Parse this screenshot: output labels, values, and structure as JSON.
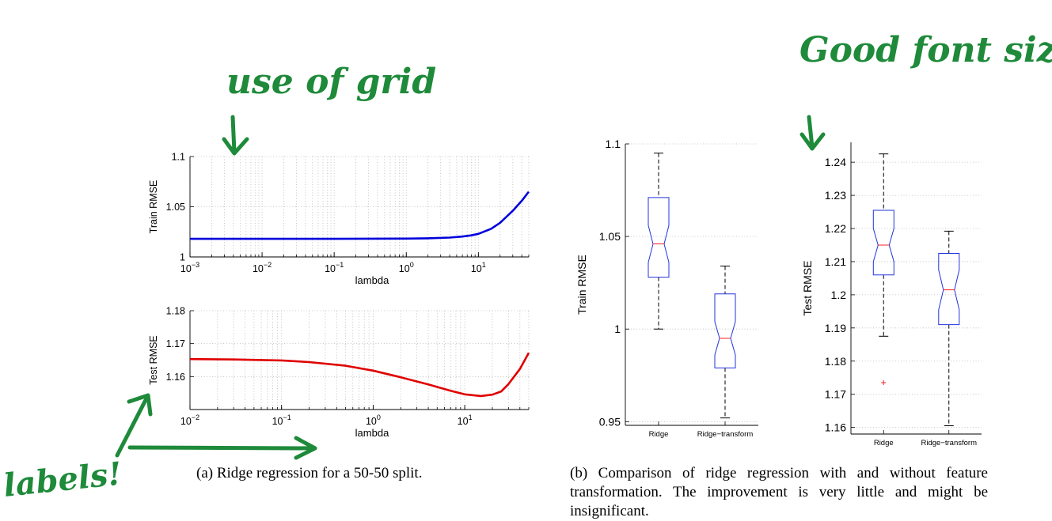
{
  "colors": {
    "annotation_green": "#1e8a3a",
    "series_blue": "#0000dd",
    "series_red": "#e00000",
    "box_blue": "#2233dd",
    "median_red": "#ff2020",
    "grid": "#b8b8b8"
  },
  "annotations": {
    "grid_note": "use of grid",
    "font_note": "Good font size.",
    "labels_note": "labels!"
  },
  "captions": {
    "a": "(a) Ridge regression for a 50-50 split.",
    "b": "(b) Comparison of ridge regression with and without feature transformation. The improvement is very little and might be insignificant."
  },
  "chart_data": [
    {
      "id": "a-train",
      "type": "line",
      "xscale": "log",
      "xlabel": "lambda",
      "ylabel": "Train RMSE",
      "xlim": [
        0.001,
        50
      ],
      "ylim": [
        1.0,
        1.1
      ],
      "xticks": [
        0.001,
        0.01,
        0.1,
        1,
        10
      ],
      "xtick_exponents": [
        "-3",
        "-2",
        "-1",
        "0",
        "1"
      ],
      "yticks": [
        1.0,
        1.05,
        1.1
      ],
      "ytick_labels": [
        "1",
        "1.05",
        "1.1"
      ],
      "grid": true,
      "series": [
        {
          "color": "#0000dd",
          "x": [
            0.001,
            0.01,
            0.1,
            1,
            2,
            4,
            6,
            8,
            10,
            15,
            20,
            30,
            40,
            50
          ],
          "y": [
            1.018,
            1.018,
            1.018,
            1.0183,
            1.0186,
            1.0193,
            1.0203,
            1.0215,
            1.023,
            1.028,
            1.034,
            1.046,
            1.056,
            1.065
          ]
        }
      ]
    },
    {
      "id": "a-test",
      "type": "line",
      "xscale": "log",
      "xlabel": "lambda",
      "ylabel": "Test RMSE",
      "xlim": [
        0.01,
        50
      ],
      "ylim": [
        1.15,
        1.18
      ],
      "xticks": [
        0.01,
        0.1,
        1,
        10
      ],
      "xtick_exponents": [
        "-2",
        "-1",
        "0",
        "1"
      ],
      "yticks": [
        1.16,
        1.17,
        1.18
      ],
      "ytick_labels": [
        "1.16",
        "1.17",
        "1.18"
      ],
      "grid": true,
      "series": [
        {
          "color": "#e00000",
          "x": [
            0.01,
            0.03,
            0.1,
            0.2,
            0.5,
            1,
            2,
            4,
            7,
            10,
            15,
            20,
            25,
            30,
            40,
            50
          ],
          "y": [
            1.1653,
            1.1652,
            1.1649,
            1.1644,
            1.1633,
            1.1618,
            1.1598,
            1.1576,
            1.1557,
            1.1546,
            1.1541,
            1.1545,
            1.1555,
            1.1577,
            1.1623,
            1.1672
          ]
        }
      ]
    },
    {
      "id": "b-train",
      "type": "box",
      "ylabel": "Train RMSE",
      "categories": [
        "Ridge",
        "Ridge−transform"
      ],
      "ylim": [
        0.948,
        1.1
      ],
      "yticks": [
        0.95,
        1.0,
        1.05,
        1.1
      ],
      "ytick_labels": [
        "0.95",
        "1",
        "1.05",
        "1.1"
      ],
      "grid": true,
      "boxes": [
        {
          "whisker_low": 1.0,
          "q1": 1.028,
          "median": 1.046,
          "q3": 1.071,
          "whisker_high": 1.095,
          "notch_low": 1.036,
          "notch_high": 1.056,
          "outliers": []
        },
        {
          "whisker_low": 0.952,
          "q1": 0.979,
          "median": 0.995,
          "q3": 1.019,
          "whisker_high": 1.034,
          "notch_low": 0.986,
          "notch_high": 1.004,
          "outliers": []
        }
      ]
    },
    {
      "id": "b-test",
      "type": "box",
      "ylabel": "Test RMSE",
      "categories": [
        "Ridge",
        "Ridge−transform"
      ],
      "ylim": [
        1.158,
        1.246
      ],
      "yticks": [
        1.16,
        1.17,
        1.18,
        1.19,
        1.2,
        1.21,
        1.22,
        1.23,
        1.24
      ],
      "ytick_labels": [
        "1.16",
        "1.17",
        "1.18",
        "1.19",
        "1.2",
        "1.21",
        "1.22",
        "1.23",
        "1.24"
      ],
      "grid": true,
      "boxes": [
        {
          "whisker_low": 1.1875,
          "q1": 1.206,
          "median": 1.215,
          "q3": 1.2255,
          "whisker_high": 1.2425,
          "notch_low": 1.21,
          "notch_high": 1.22,
          "outliers": [
            1.1735
          ]
        },
        {
          "whisker_low": 1.1605,
          "q1": 1.191,
          "median": 1.2015,
          "q3": 1.2125,
          "whisker_high": 1.2192,
          "notch_low": 1.1955,
          "notch_high": 1.2075,
          "outliers": []
        }
      ]
    }
  ]
}
